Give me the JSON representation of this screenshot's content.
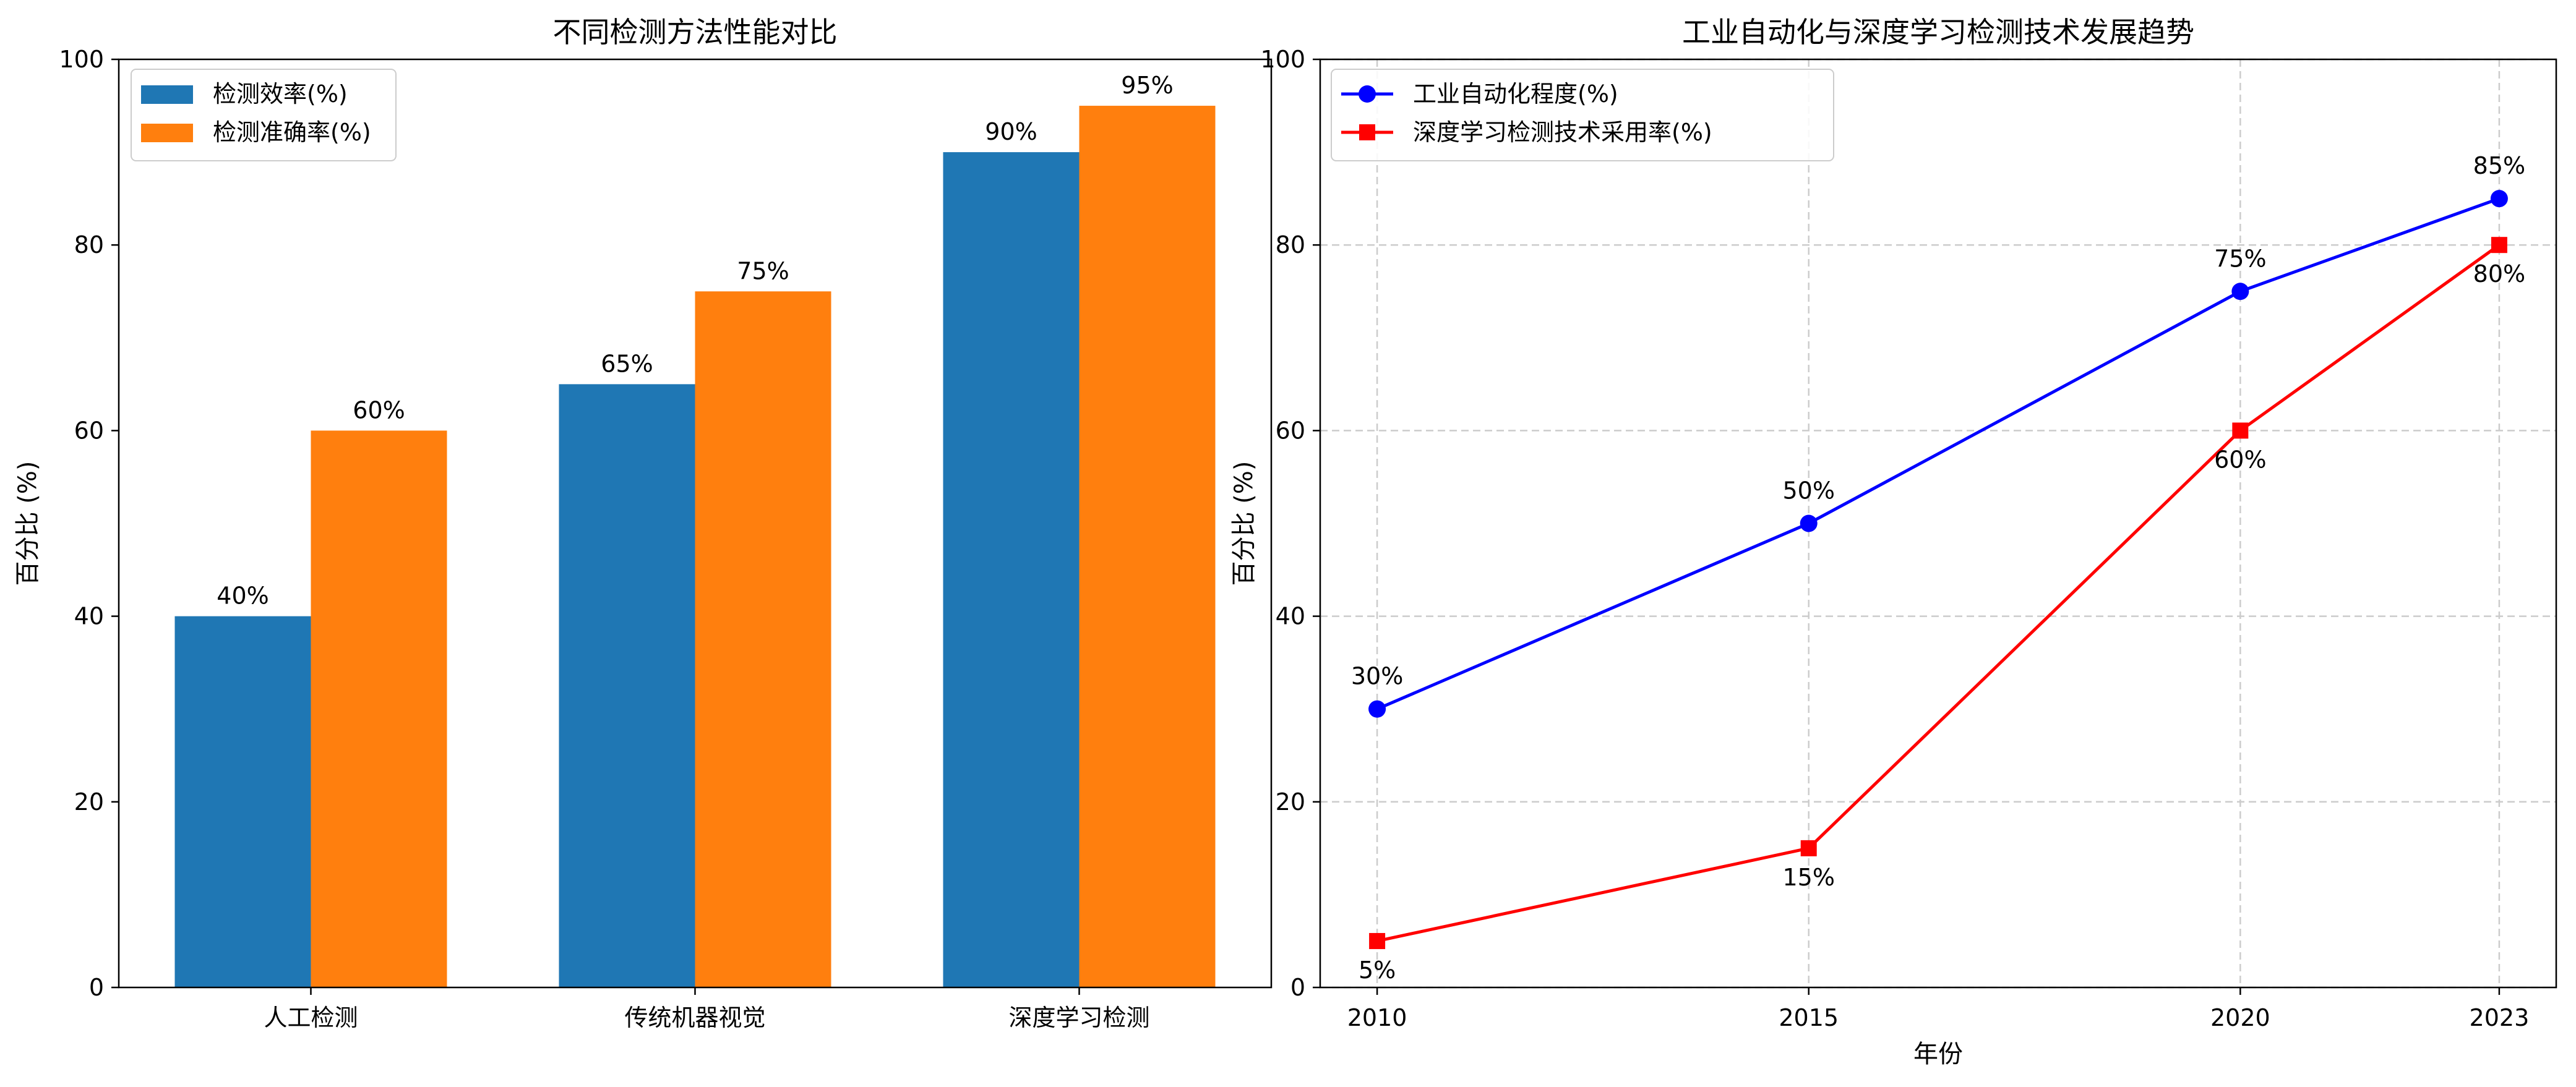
{
  "chart_data": [
    {
      "type": "bar",
      "title": "不同检测方法性能对比",
      "xlabel": "",
      "ylabel": "百分比 (%)",
      "ylim": [
        0,
        100
      ],
      "yticks": [
        0,
        20,
        40,
        60,
        80,
        100
      ],
      "categories": [
        "人工检测",
        "传统机器视觉",
        "深度学习检测"
      ],
      "series": [
        {
          "name": "检测效率(%)",
          "values": [
            40,
            65,
            90
          ],
          "color": "#1f77b4",
          "labels": [
            "40%",
            "65%",
            "90%"
          ]
        },
        {
          "name": "检测准确率(%)",
          "values": [
            60,
            75,
            95
          ],
          "color": "#ff7f0e",
          "labels": [
            "60%",
            "75%",
            "95%"
          ]
        }
      ],
      "grid": false,
      "legend": "upper-left"
    },
    {
      "type": "line",
      "title": "工业自动化与深度学习检测技术发展趋势",
      "xlabel": "年份",
      "ylabel": "百分比 (%)",
      "ylim": [
        0,
        100
      ],
      "yticks": [
        0,
        20,
        40,
        60,
        80,
        100
      ],
      "x": [
        2010,
        2015,
        2020,
        2023
      ],
      "x_tick_labels": [
        "2010",
        "2015",
        "2020",
        "2023"
      ],
      "series": [
        {
          "name": "工业自动化程度(%)",
          "values": [
            30,
            50,
            75,
            85
          ],
          "color": "#0000ff",
          "marker": "circle",
          "labels": [
            "30%",
            "50%",
            "75%",
            "85%"
          ]
        },
        {
          "name": "深度学习检测技术采用率(%)",
          "values": [
            5,
            15,
            60,
            80
          ],
          "color": "#ff0000",
          "marker": "square",
          "labels": [
            "5%",
            "15%",
            "60%",
            "80%"
          ]
        }
      ],
      "grid": true,
      "legend": "upper-left"
    }
  ]
}
